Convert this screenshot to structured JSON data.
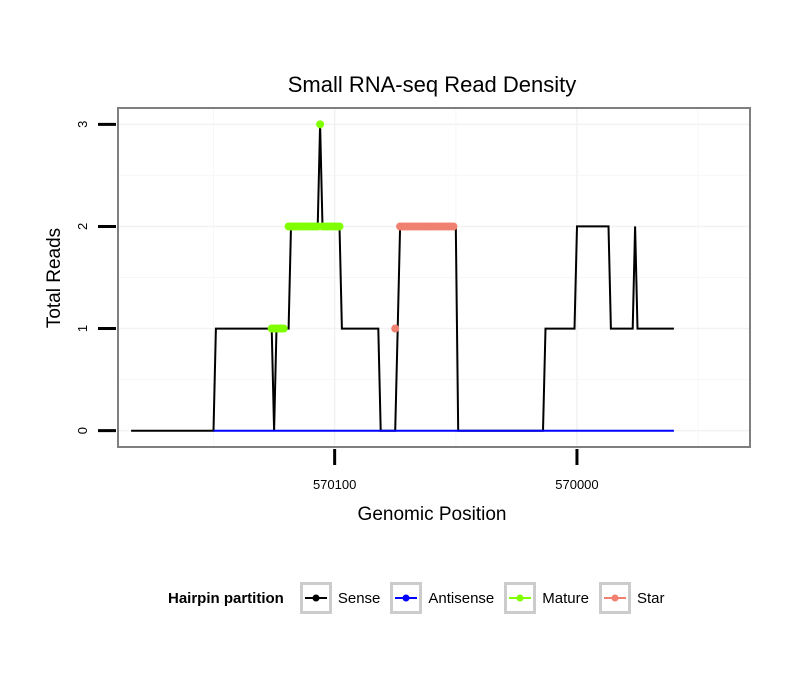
{
  "chart_data": {
    "type": "line",
    "title": "Small RNA-seq Read Density",
    "xlabel": "Genomic Position",
    "ylabel": "Total Reads",
    "x_reversed": true,
    "xlim": [
      570189,
      569929
    ],
    "ylim": [
      -0.15,
      3.15
    ],
    "x_ticks": [
      570100,
      570000
    ],
    "x_tick_labels": [
      "570100",
      "570000"
    ],
    "y_ticks": [
      0,
      1,
      2,
      3
    ],
    "y_tick_labels": [
      "0",
      "1",
      "2",
      "3"
    ],
    "legend_title": "Hairpin partition",
    "legend_position": "bottom",
    "series": [
      {
        "name": "Sense",
        "color": "#000000",
        "points": [
          [
            570184,
            0
          ],
          [
            570150,
            0
          ],
          [
            570149,
            1
          ],
          [
            570126,
            1
          ],
          [
            570125,
            0
          ],
          [
            570124,
            1
          ],
          [
            570119,
            1
          ],
          [
            570118,
            2
          ],
          [
            570107,
            2
          ],
          [
            570106,
            3
          ],
          [
            570105,
            2
          ],
          [
            570098,
            2
          ],
          [
            570097,
            1
          ],
          [
            570082,
            1
          ],
          [
            570081,
            0
          ],
          [
            570075,
            0
          ],
          [
            570074,
            1
          ],
          [
            570073,
            2
          ],
          [
            570050,
            2
          ],
          [
            570049,
            0
          ],
          [
            570014,
            0
          ],
          [
            570013,
            1
          ],
          [
            570001,
            1
          ],
          [
            570000,
            2
          ],
          [
            569987,
            2
          ],
          [
            569986,
            1
          ],
          [
            569977,
            1
          ],
          [
            569976,
            2
          ],
          [
            569975,
            1
          ],
          [
            569960,
            1
          ]
        ]
      },
      {
        "name": "Antisense",
        "color": "#0000ff",
        "points": [
          [
            570150,
            0
          ],
          [
            569960,
            0
          ]
        ]
      },
      {
        "name": "Mature",
        "color": "#7fff00",
        "points": [
          [
            570126,
            1
          ],
          [
            570125,
            1
          ],
          [
            570124,
            1
          ],
          [
            570123,
            1
          ],
          [
            570122,
            1
          ],
          [
            570121,
            1
          ],
          [
            570119,
            2
          ],
          [
            570118,
            2
          ],
          [
            570117,
            2
          ],
          [
            570116,
            2
          ],
          [
            570115,
            2
          ],
          [
            570114,
            2
          ],
          [
            570113,
            2
          ],
          [
            570112,
            2
          ],
          [
            570111,
            2
          ],
          [
            570110,
            2
          ],
          [
            570109,
            2
          ],
          [
            570108,
            2
          ],
          [
            570107,
            2
          ],
          [
            570106,
            3
          ],
          [
            570105,
            2
          ],
          [
            570104,
            2
          ],
          [
            570103,
            2
          ],
          [
            570102,
            2
          ],
          [
            570101,
            2
          ],
          [
            570100,
            2
          ],
          [
            570099,
            2
          ],
          [
            570098,
            2
          ]
        ]
      },
      {
        "name": "Star",
        "color": "#f08070",
        "points": [
          [
            570075,
            1
          ],
          [
            570073,
            2
          ],
          [
            570072,
            2
          ],
          [
            570071,
            2
          ],
          [
            570070,
            2
          ],
          [
            570069,
            2
          ],
          [
            570068,
            2
          ],
          [
            570067,
            2
          ],
          [
            570066,
            2
          ],
          [
            570065,
            2
          ],
          [
            570064,
            2
          ],
          [
            570063,
            2
          ],
          [
            570062,
            2
          ],
          [
            570061,
            2
          ],
          [
            570060,
            2
          ],
          [
            570059,
            2
          ],
          [
            570058,
            2
          ],
          [
            570057,
            2
          ],
          [
            570056,
            2
          ],
          [
            570055,
            2
          ],
          [
            570054,
            2
          ],
          [
            570053,
            2
          ],
          [
            570052,
            2
          ],
          [
            570051,
            2
          ]
        ]
      }
    ]
  }
}
